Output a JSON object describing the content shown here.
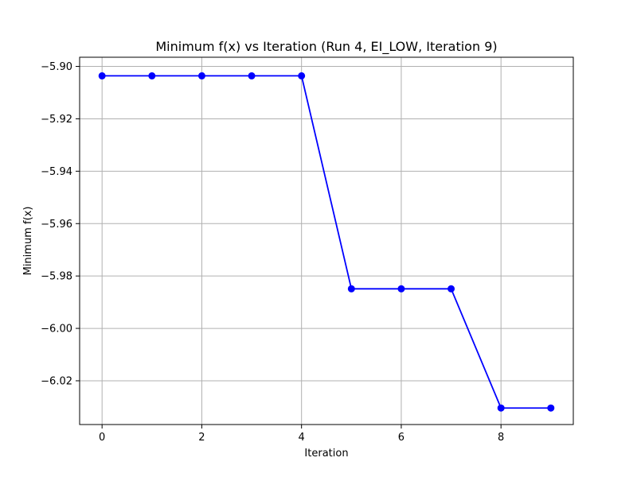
{
  "chart_data": {
    "type": "line",
    "title": "Minimum f(x) vs Iteration (Run 4, EI_LOW, Iteration 9)",
    "xlabel": "Iteration",
    "ylabel": "Minimum f(x)",
    "xlim": [
      -0.45,
      9.45
    ],
    "ylim": [
      -6.0367,
      -5.8965
    ],
    "x_ticks": [
      0,
      2,
      4,
      6,
      8
    ],
    "x_tick_labels": [
      "0",
      "2",
      "4",
      "6",
      "8"
    ],
    "y_ticks": [
      -5.9,
      -5.92,
      -5.94,
      -5.96,
      -5.98,
      -6.0,
      -6.02
    ],
    "y_tick_labels": [
      "−5.90",
      "−5.92",
      "−5.94",
      "−5.96",
      "−5.98",
      "−6.00",
      "−6.02"
    ],
    "grid": true,
    "series": [
      {
        "color": "#0000ff",
        "marker": "circle",
        "x": [
          0,
          1,
          2,
          3,
          4,
          5,
          6,
          7,
          8,
          9
        ],
        "y": [
          -5.9036,
          -5.9036,
          -5.9036,
          -5.9036,
          -5.9036,
          -5.9849,
          -5.9849,
          -5.9849,
          -6.0304,
          -6.0304
        ]
      }
    ]
  }
}
